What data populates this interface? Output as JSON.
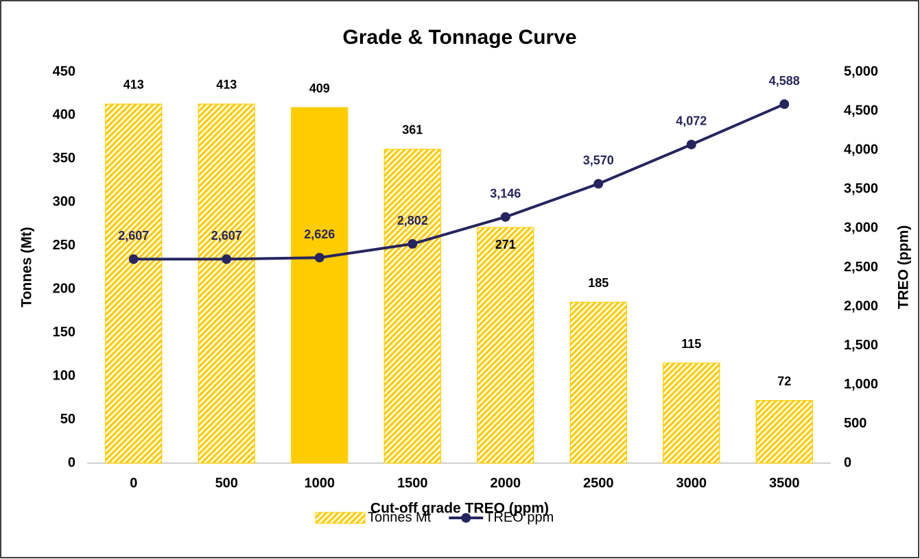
{
  "chart_data": {
    "type": "bar_line",
    "title": "Grade & Tonnage Curve",
    "x_label": "Cut-off grade TREO (ppm)",
    "y_label": "Tonnes (Mt)",
    "y2_label": "TREO (ppm)",
    "categories": [
      "0",
      "500",
      "1000",
      "1500",
      "2000",
      "2500",
      "3000",
      "3500"
    ],
    "series": [
      {
        "name": "Tonnes Mt",
        "type": "bar",
        "color": "#FFCC00",
        "pattern": "hatch",
        "solid_points": [
          2
        ],
        "values": [
          413,
          413,
          409,
          361,
          271,
          185,
          115,
          72
        ]
      },
      {
        "name": "TREO ppm",
        "type": "line",
        "axis": "y2",
        "color": "#27255F",
        "values": [
          2607,
          2607,
          2626,
          2802,
          3146,
          3570,
          4072,
          4588
        ],
        "value_labels": [
          "2,607",
          "2,607",
          "2,626",
          "2,802",
          "3,146",
          "3,570",
          "4,072",
          "4,588"
        ]
      }
    ],
    "ylim": [
      0,
      450
    ],
    "yticks": [
      0,
      50,
      100,
      150,
      200,
      250,
      300,
      350,
      400,
      450
    ],
    "y2lim": [
      0,
      5000
    ],
    "y2ticks": [
      0,
      500,
      {
        "value": 1000,
        "label": "1,000"
      },
      {
        "value": 1500,
        "label": "1,500"
      },
      {
        "value": 2000,
        "label": "2,000"
      },
      {
        "value": 2500,
        "label": "2,500"
      },
      {
        "value": 3000,
        "label": "3,000"
      },
      {
        "value": 3500,
        "label": "3,500"
      },
      {
        "value": 4000,
        "label": "4,000"
      },
      {
        "value": 4500,
        "label": "4,500"
      },
      {
        "value": 5000,
        "label": "5,000"
      }
    ],
    "grid": false,
    "legend": "bottom"
  }
}
